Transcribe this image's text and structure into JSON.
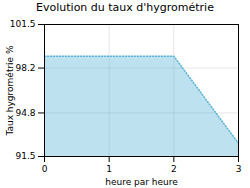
{
  "chart_data": {
    "type": "area",
    "title": "Evolution du taux d'hygrométrie",
    "x_label": "heure par heure",
    "y_label": "Taux hygrométrie %",
    "x": [
      0,
      2,
      2,
      3
    ],
    "values": [
      99.1,
      99.1,
      99.1,
      92.5
    ],
    "color": "#5ab4d6",
    "line_style": "dotted",
    "xlim": [
      0,
      3
    ],
    "xticks": [
      0,
      1,
      2,
      3
    ],
    "ylim": [
      91.5,
      101.5
    ],
    "yticks": [
      91.5,
      94.8,
      98.2,
      101.5
    ],
    "grid": true
  }
}
